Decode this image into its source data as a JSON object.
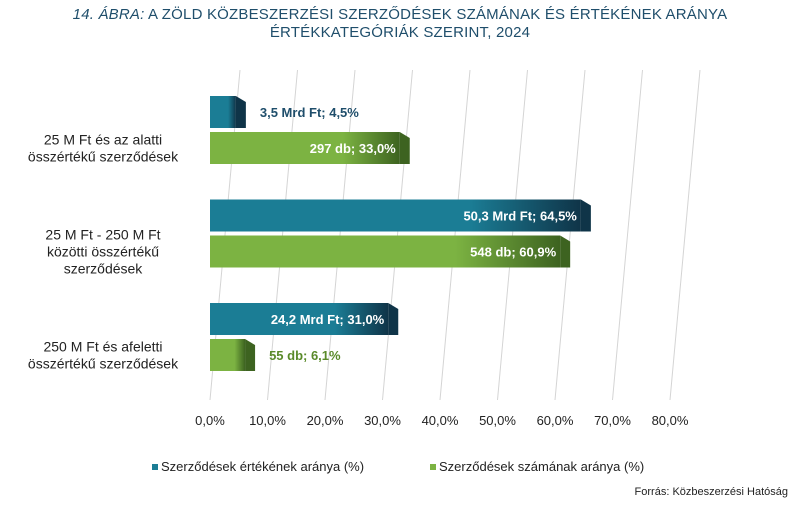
{
  "title": {
    "prefix": "14. ÁBRA:",
    "line1": "A ZÖLD KÖZBESZERZÉSI SZERZŐDÉSEK SZÁMÁNAK ÉS ÉRTÉKÉNEK ARÁNYA",
    "line2": "ÉRTÉKKATEGÓRIÁK SZERINT, 2024"
  },
  "source": "Forrás: Közbeszerzési Hatóság",
  "colors": {
    "value_series": "#1b7d95",
    "value_series_dark": "#0f3448",
    "count_series": "#7cb342",
    "count_series_dark": "#3d6320",
    "grid": "#d4d4d4",
    "label_dark": "#1f4e6b",
    "label_green": "#5a8a2a"
  },
  "chart_data": {
    "type": "bar",
    "orientation": "horizontal",
    "categories": [
      [
        "25 M Ft  és az alatti",
        "összértékű  szerződések"
      ],
      [
        "25 M Ft - 250 M Ft",
        "közötti összértékű",
        "szerződések"
      ],
      [
        "250 M Ft  és afeletti",
        "összértékű szerződések"
      ]
    ],
    "series": [
      {
        "name": "Szerződések értékének aránya (%)",
        "values": [
          4.5,
          64.5,
          31.0
        ],
        "labels": [
          "3,5 Mrd Ft; 4,5%",
          "50,3 Mrd Ft; 64,5%",
          "24,2 Mrd Ft; 31,0%"
        ]
      },
      {
        "name": "Szerződések számának aránya (%)",
        "values": [
          33.0,
          60.9,
          6.1
        ],
        "labels": [
          "297 db; 33,0%",
          "548 db; 60,9%",
          "55 db; 6,1%"
        ]
      }
    ],
    "xlim": [
      0,
      80
    ],
    "xticks": [
      0,
      10,
      20,
      30,
      40,
      50,
      60,
      70,
      80
    ],
    "xtick_labels": [
      "0,0%",
      "10,0%",
      "20,0%",
      "30,0%",
      "40,0%",
      "50,0%",
      "60,0%",
      "70,0%",
      "80,0%"
    ],
    "grid": true,
    "legend_position": "bottom"
  },
  "legend": {
    "value_label": "Szerződések értékének aránya (%)",
    "count_label_a": "Szerződések",
    "count_label_b": "számának aránya (%)"
  }
}
